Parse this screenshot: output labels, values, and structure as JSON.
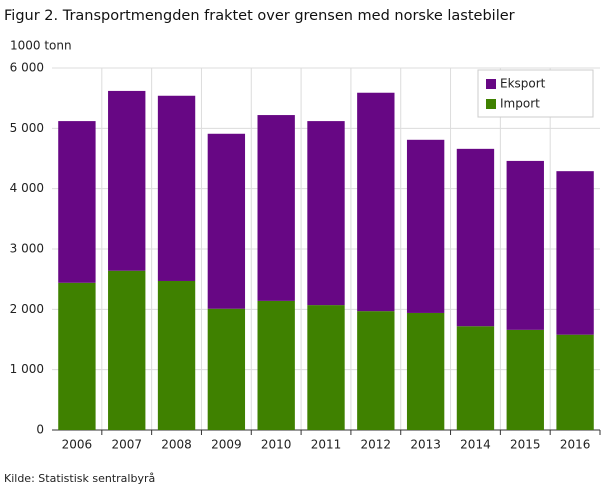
{
  "chart_data": {
    "type": "stacked_bar",
    "title": "Figur 2. Transportmengden fraktet over grensen med norske lastebiler",
    "y_axis_label": "1000  tonn",
    "source": "Kilde: Statistisk sentralbyrå",
    "categories": [
      "2006",
      "2007",
      "2008",
      "2009",
      "2010",
      "2011",
      "2012",
      "2013",
      "2014",
      "2015",
      "2016"
    ],
    "series": [
      {
        "name": "Import",
        "color": "#3f8100",
        "values": [
          2440,
          2640,
          2470,
          2010,
          2140,
          2070,
          1970,
          1940,
          1720,
          1660,
          1580
        ]
      },
      {
        "name": "Eksport",
        "color": "#670784",
        "values": [
          2680,
          2980,
          3070,
          2900,
          3080,
          3050,
          3620,
          2870,
          2940,
          2800,
          2710
        ]
      }
    ],
    "ylim": [
      0,
      6000
    ],
    "yticks": [
      0,
      {
        "value": 1000,
        "label": "1 000"
      },
      {
        "value": 2000,
        "label": "2 000"
      },
      {
        "value": 3000,
        "label": "3 000"
      },
      {
        "value": 4000,
        "label": "4 000"
      },
      {
        "value": 5000,
        "label": "5 000"
      },
      {
        "value": 6000,
        "label": "6 000"
      }
    ],
    "grid": true,
    "legend": "top-right"
  }
}
